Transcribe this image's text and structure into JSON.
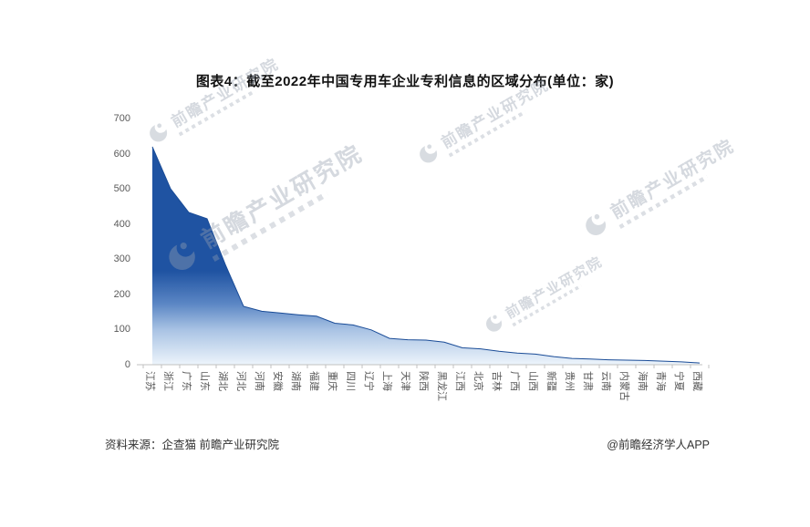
{
  "title": "图表4：截至2022年中国专用车企业专利信息的区域分布(单位：家)",
  "watermark": {
    "text": "前瞻产业研究院"
  },
  "footer": {
    "source": "资料来源：企查猫 前瞻产业研究院",
    "credit": "@前瞻经济学人APP"
  },
  "chart_data": {
    "type": "area",
    "title": "图表4：截至2022年中国专用车企业专利信息的区域分布(单位：家)",
    "unit": "家",
    "xlabel": "",
    "ylabel": "",
    "categories": [
      "江苏",
      "浙江",
      "广东",
      "山东",
      "湖北",
      "河北",
      "河南",
      "安徽",
      "湖南",
      "福建",
      "重庆",
      "四川",
      "辽宁",
      "上海",
      "天津",
      "陕西",
      "黑龙江",
      "江西",
      "北京",
      "吉林",
      "广西",
      "山西",
      "新疆",
      "贵州",
      "甘肃",
      "云南",
      "内蒙古",
      "海南",
      "青海",
      "宁夏",
      "西藏"
    ],
    "values": [
      620,
      500,
      433,
      415,
      285,
      166,
      152,
      147,
      142,
      138,
      118,
      113,
      99,
      75,
      71,
      70,
      64,
      48,
      45,
      38,
      33,
      30,
      23,
      18,
      16,
      14,
      13,
      12,
      10,
      8,
      5
    ],
    "ylim": [
      0,
      700
    ],
    "yticks": [
      0,
      100,
      200,
      300,
      400,
      500,
      600,
      700
    ],
    "grid": false,
    "legend": "none",
    "colors": {
      "area_top": "#1f53a2",
      "area_mid": "#5b86c4",
      "area_low": "#a9c3e4",
      "area_bottom": "#edf4fb",
      "line": "#1a4c97",
      "axis": "#c0c0c0",
      "tick_label": "#595959"
    }
  }
}
